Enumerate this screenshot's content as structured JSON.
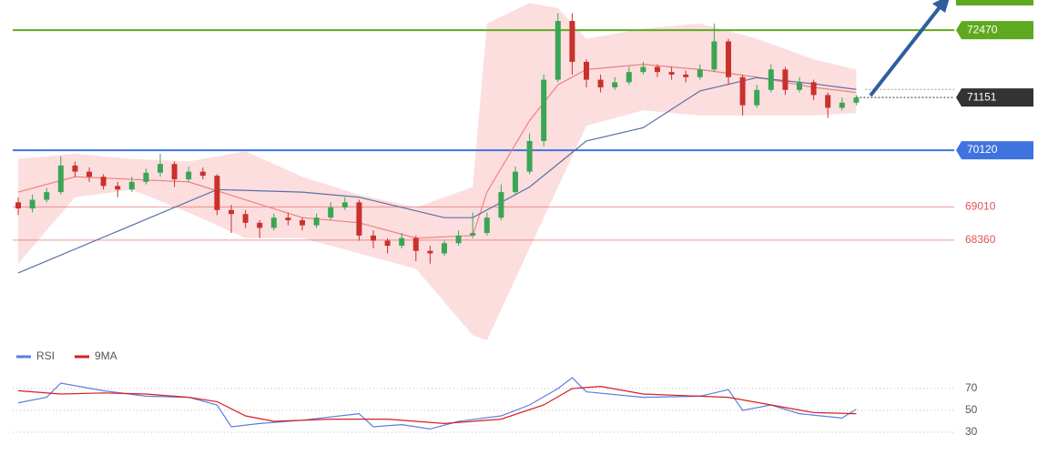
{
  "chart_data": {
    "type": "candlestick",
    "ylim": [
      66470,
      73060
    ],
    "up_color": "#3aa655",
    "down_color": "#c9312c",
    "ohlc": [
      [
        69100,
        69200,
        68850,
        68980
      ],
      [
        68980,
        69250,
        68900,
        69150
      ],
      [
        69150,
        69380,
        69100,
        69300
      ],
      [
        69300,
        70000,
        69250,
        69820
      ],
      [
        69820,
        69900,
        69600,
        69700
      ],
      [
        69700,
        69780,
        69500,
        69600
      ],
      [
        69600,
        69650,
        69350,
        69420
      ],
      [
        69420,
        69500,
        69200,
        69350
      ],
      [
        69350,
        69600,
        69300,
        69500
      ],
      [
        69500,
        69760,
        69450,
        69680
      ],
      [
        69680,
        70050,
        69600,
        69850
      ],
      [
        69850,
        69900,
        69400,
        69550
      ],
      [
        69550,
        69800,
        69500,
        69700
      ],
      [
        69700,
        69780,
        69550,
        69620
      ],
      [
        69620,
        69650,
        68850,
        68950
      ],
      [
        68950,
        69050,
        68500,
        68870
      ],
      [
        68870,
        68950,
        68600,
        68700
      ],
      [
        68700,
        68750,
        68400,
        68600
      ],
      [
        68600,
        68880,
        68550,
        68800
      ],
      [
        68800,
        68900,
        68650,
        68750
      ],
      [
        68750,
        68800,
        68550,
        68650
      ],
      [
        68650,
        68880,
        68600,
        68800
      ],
      [
        68800,
        69100,
        68750,
        69000
      ],
      [
        69000,
        69200,
        68950,
        69100
      ],
      [
        69100,
        69150,
        68350,
        68450
      ],
      [
        68450,
        68550,
        68200,
        68350
      ],
      [
        68350,
        68400,
        68100,
        68250
      ],
      [
        68250,
        68500,
        68200,
        68400
      ],
      [
        68400,
        68450,
        67950,
        68150
      ],
      [
        68150,
        68250,
        67900,
        68100
      ],
      [
        68100,
        68350,
        68050,
        68300
      ],
      [
        68300,
        68550,
        68250,
        68450
      ],
      [
        68450,
        68900,
        68400,
        68500
      ],
      [
        68500,
        68900,
        68450,
        68800
      ],
      [
        68800,
        69450,
        68750,
        69300
      ],
      [
        69300,
        69800,
        69250,
        69700
      ],
      [
        69700,
        70450,
        69650,
        70300
      ],
      [
        70300,
        71600,
        70200,
        71500
      ],
      [
        71500,
        72800,
        71450,
        72650
      ],
      [
        72650,
        72800,
        71600,
        71850
      ],
      [
        71850,
        71900,
        71350,
        71500
      ],
      [
        71500,
        71600,
        71250,
        71350
      ],
      [
        71350,
        71550,
        71300,
        71450
      ],
      [
        71450,
        71750,
        71400,
        71650
      ],
      [
        71650,
        71850,
        71600,
        71750
      ],
      [
        71750,
        71800,
        71550,
        71650
      ],
      [
        71650,
        71750,
        71500,
        71600
      ],
      [
        71600,
        71680,
        71450,
        71550
      ],
      [
        71550,
        71800,
        71500,
        71700
      ],
      [
        71700,
        72600,
        71650,
        72250
      ],
      [
        72250,
        72300,
        71400,
        71550
      ],
      [
        71550,
        71600,
        70800,
        71000
      ],
      [
        71000,
        71400,
        70950,
        71300
      ],
      [
        71300,
        71800,
        71250,
        71700
      ],
      [
        71700,
        71750,
        71200,
        71300
      ],
      [
        71300,
        71550,
        71250,
        71450
      ],
      [
        71450,
        71500,
        71100,
        71200
      ],
      [
        71200,
        71250,
        70750,
        70950
      ],
      [
        70950,
        71150,
        70900,
        71050
      ],
      [
        71050,
        71200,
        71000,
        71151
      ]
    ],
    "bands": {
      "color": "#fbd3d3",
      "x": [
        0,
        4,
        8,
        12,
        16,
        20,
        24,
        28,
        32,
        33,
        36,
        38,
        40,
        44,
        48,
        52,
        56,
        59
      ],
      "upper": [
        69950,
        70050,
        69950,
        69900,
        70100,
        69600,
        69250,
        69000,
        69400,
        72600,
        73000,
        72900,
        72300,
        72500,
        72600,
        72300,
        71900,
        71700
      ],
      "lower": [
        67900,
        69200,
        69350,
        68900,
        68400,
        68400,
        68100,
        67800,
        66500,
        66400,
        68200,
        69400,
        70600,
        70900,
        70800,
        70800,
        70800,
        70850
      ]
    },
    "fast_ma": {
      "color": "#f08080",
      "x": [
        0,
        4,
        8,
        12,
        16,
        20,
        24,
        28,
        32,
        33,
        36,
        38,
        40,
        44,
        48,
        52,
        56,
        59
      ],
      "values": [
        69300,
        69600,
        69550,
        69500,
        69150,
        68800,
        68700,
        68400,
        68450,
        69300,
        70700,
        71400,
        71700,
        71800,
        71700,
        71550,
        71350,
        71250
      ]
    },
    "slow_ma": {
      "color": "#5a6fa8",
      "x": [
        0,
        14,
        20,
        24,
        30,
        32,
        36,
        40,
        44,
        48,
        52,
        56,
        59
      ],
      "values": [
        67717,
        69350,
        69300,
        69200,
        68800,
        68800,
        69400,
        70300,
        70560,
        71280,
        71540,
        71420,
        71310
      ]
    },
    "levels": [
      {
        "value": 72470,
        "color": "#5ea91f",
        "style": "box"
      },
      {
        "value": 71151,
        "color": "#333333",
        "style": "box",
        "dotted": true
      },
      {
        "value": 70120,
        "color": "#3f74e0",
        "style": "box"
      },
      {
        "value": 69010,
        "color": "#e05555",
        "style": "text"
      },
      {
        "value": 68360,
        "color": "#e05555",
        "style": "text"
      }
    ],
    "rsi_panel": {
      "ylim": [
        17.5,
        92.5
      ],
      "yticks": [
        70,
        50,
        30
      ],
      "series": [
        {
          "name": "RSI",
          "color": "#5b7fe0",
          "x": [
            0,
            2,
            3,
            6,
            9,
            12,
            14,
            15,
            17,
            20,
            24,
            25,
            27,
            29,
            31,
            34,
            36,
            38,
            39,
            40,
            44,
            48,
            50,
            51,
            53,
            55,
            58,
            59
          ],
          "values": [
            57,
            62,
            75,
            68,
            63,
            62,
            55,
            35,
            38,
            41,
            47,
            35,
            37,
            33,
            40,
            45,
            55,
            70,
            80,
            67,
            62,
            63,
            69,
            50,
            55,
            47,
            43,
            51
          ]
        },
        {
          "name": "9MA",
          "color": "#d62020",
          "x": [
            0,
            3,
            6,
            9,
            12,
            14,
            16,
            18,
            22,
            26,
            30,
            34,
            37,
            39,
            41,
            44,
            48,
            50,
            53,
            56,
            59
          ],
          "values": [
            68,
            65,
            66,
            65,
            62,
            58,
            45,
            40,
            42,
            42,
            38,
            42,
            55,
            70,
            72,
            65,
            63,
            62,
            55,
            48,
            47
          ]
        }
      ]
    }
  }
}
